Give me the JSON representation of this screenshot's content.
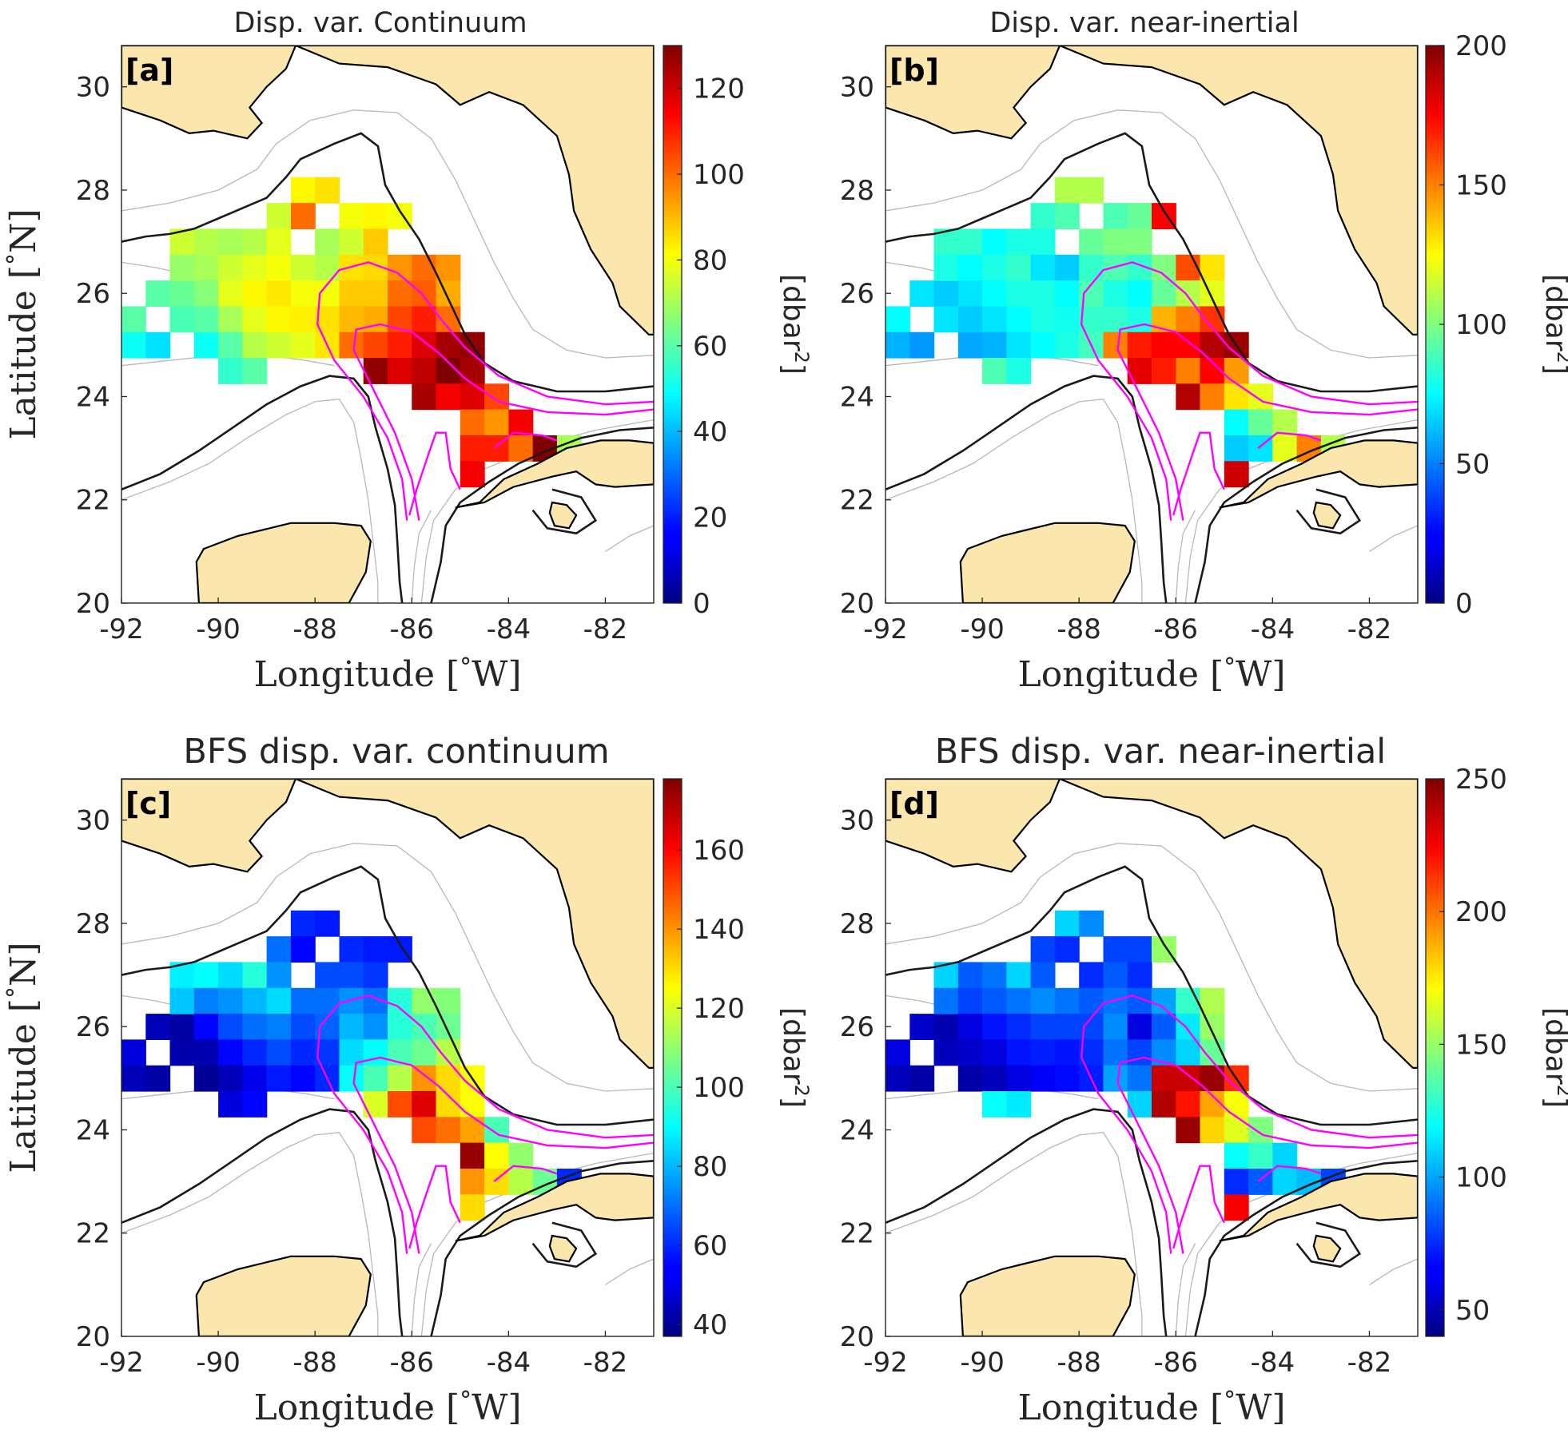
{
  "colors": {
    "land": "#FBE7AE",
    "coast": "#000000",
    "isobath_thick": "#1a1a1a",
    "isobath_thin": "#b8b8b8",
    "loop_current": "#FF00FF",
    "axes": "#262626",
    "sea": "#ffffff"
  },
  "axis": {
    "x_ticks": [
      "-92",
      "-90",
      "-88",
      "-86",
      "-84",
      "-82"
    ],
    "y_ticks": [
      "20",
      "22",
      "24",
      "26",
      "28",
      "30"
    ],
    "x_label_text": "Longitude [",
    "x_label_deg": "°",
    "x_label_unit": "W]",
    "y_label_text": "Latitude [",
    "y_label_deg": "°",
    "y_label_unit": "N]"
  },
  "unit": {
    "base": "[dbar",
    "sup": "2",
    "close": "]"
  },
  "panels": [
    {
      "letter": "[a]",
      "title": "Disp. var. Continuum",
      "cbar_min": 0,
      "cbar_max": 130,
      "cbar_ticks": [
        "0",
        "20",
        "40",
        "60",
        "80",
        "100",
        "120"
      ],
      "cbar_tick_values": [
        0,
        20,
        40,
        60,
        80,
        100,
        120
      ]
    },
    {
      "letter": "[b]",
      "title": "Disp. var. near-inertial",
      "cbar_min": 0,
      "cbar_max": 200,
      "cbar_ticks": [
        "0",
        "50",
        "100",
        "150",
        "200"
      ],
      "cbar_tick_values": [
        0,
        50,
        100,
        150,
        200
      ]
    },
    {
      "letter": "[c]",
      "title": "BFS disp. var. continuum",
      "cbar_min": 37,
      "cbar_max": 178,
      "cbar_ticks": [
        "40",
        "60",
        "80",
        "100",
        "120",
        "140",
        "160"
      ],
      "cbar_tick_values": [
        40,
        60,
        80,
        100,
        120,
        140,
        160
      ]
    },
    {
      "letter": "[d]",
      "title": "BFS disp. var. near-inertial",
      "cbar_min": 40,
      "cbar_max": 250,
      "cbar_ticks": [
        "50",
        "100",
        "150",
        "200",
        "250"
      ],
      "cbar_tick_values": [
        50,
        100,
        150,
        200,
        250
      ]
    }
  ],
  "chart_data": {
    "type": "heatmap",
    "lon_range": [
      -92,
      -81
    ],
    "lat_range": [
      20,
      30.8
    ],
    "cell_size_deg": 0.5,
    "cells": [
      {
        "lon": -91.75,
        "lat": 25.5,
        "v": [
          60,
          75,
          50,
          60
        ]
      },
      {
        "lon": -91.75,
        "lat": 25.0,
        "v": [
          50,
          60,
          45,
          52
        ]
      },
      {
        "lon": -91.25,
        "lat": 25.0,
        "v": [
          45,
          55,
          42,
          48
        ]
      },
      {
        "lon": -91.25,
        "lat": 26.0,
        "v": [
          60,
          70,
          45,
          55
        ]
      },
      {
        "lon": -90.75,
        "lat": 26.0,
        "v": [
          62,
          65,
          42,
          50
        ]
      },
      {
        "lon": -90.75,
        "lat": 25.5,
        "v": [
          58,
          70,
          43,
          52
        ]
      },
      {
        "lon": -90.25,
        "lat": 25.0,
        "v": [
          50,
          58,
          40,
          48
        ]
      },
      {
        "lon": -90.75,
        "lat": 27.0,
        "v": [
          75,
          85,
          88,
          110
        ]
      },
      {
        "lon": -90.75,
        "lat": 26.5,
        "v": [
          68,
          80,
          82,
          90
        ]
      },
      {
        "lon": -90.25,
        "lat": 27.0,
        "v": [
          72,
          85,
          90,
          85
        ]
      },
      {
        "lon": -90.25,
        "lat": 26.5,
        "v": [
          70,
          75,
          72,
          80
        ]
      },
      {
        "lon": -90.25,
        "lat": 26.0,
        "v": [
          66,
          70,
          55,
          60
        ]
      },
      {
        "lon": -90.25,
        "lat": 25.5,
        "v": [
          60,
          65,
          44,
          55
        ]
      },
      {
        "lon": -89.75,
        "lat": 27.0,
        "v": [
          70,
          75,
          85,
          90
        ]
      },
      {
        "lon": -89.75,
        "lat": 26.5,
        "v": [
          75,
          80,
          75,
          85
        ]
      },
      {
        "lon": -89.75,
        "lat": 26.0,
        "v": [
          78,
          75,
          65,
          70
        ]
      },
      {
        "lon": -89.75,
        "lat": 25.5,
        "v": [
          70,
          70,
          55,
          60
        ]
      },
      {
        "lon": -89.75,
        "lat": 25.0,
        "v": [
          60,
          60,
          45,
          52
        ]
      },
      {
        "lon": -89.75,
        "lat": 24.5,
        "v": [
          55,
          90,
          50,
          120
        ]
      },
      {
        "lon": -89.25,
        "lat": 27.0,
        "v": [
          72,
          80,
          95,
          110
        ]
      },
      {
        "lon": -89.25,
        "lat": 26.5,
        "v": [
          78,
          85,
          80,
          90
        ]
      },
      {
        "lon": -89.25,
        "lat": 26.0,
        "v": [
          82,
          80,
          70,
          75
        ]
      },
      {
        "lon": -89.25,
        "lat": 25.5,
        "v": [
          78,
          75,
          60,
          70
        ]
      },
      {
        "lon": -89.25,
        "lat": 25.0,
        "v": [
          72,
          70,
          52,
          60
        ]
      },
      {
        "lon": -89.25,
        "lat": 24.5,
        "v": [
          60,
          80,
          55,
          115
        ]
      },
      {
        "lon": -88.75,
        "lat": 27.5,
        "v": [
          75,
          85,
          70,
          80
        ]
      },
      {
        "lon": -88.75,
        "lat": 27.0,
        "v": [
          78,
          80,
          75,
          85
        ]
      },
      {
        "lon": -88.75,
        "lat": 26.5,
        "v": [
          80,
          70,
          85,
          95
        ]
      },
      {
        "lon": -88.75,
        "lat": 26.0,
        "v": [
          84,
          80,
          72,
          80
        ]
      },
      {
        "lon": -88.75,
        "lat": 25.5,
        "v": [
          82,
          80,
          65,
          72
        ]
      },
      {
        "lon": -88.75,
        "lat": 25.0,
        "v": [
          75,
          75,
          58,
          65
        ]
      },
      {
        "lon": -88.25,
        "lat": 28.0,
        "v": [
          82,
          110,
          60,
          110
        ]
      },
      {
        "lon": -88.25,
        "lat": 27.5,
        "v": [
          100,
          90,
          55,
          75
        ]
      },
      {
        "lon": -88.25,
        "lat": 26.5,
        "v": [
          75,
          65,
          70,
          90
        ]
      },
      {
        "lon": -88.25,
        "lat": 26.0,
        "v": [
          80,
          75,
          65,
          80
        ]
      },
      {
        "lon": -88.25,
        "lat": 25.5,
        "v": [
          83,
          78,
          60,
          70
        ]
      },
      {
        "lon": -88.25,
        "lat": 25.0,
        "v": [
          78,
          80,
          55,
          68
        ]
      },
      {
        "lon": -87.75,
        "lat": 28.0,
        "v": [
          85,
          110,
          58,
          95
        ]
      },
      {
        "lon": -87.75,
        "lat": 27.0,
        "v": [
          70,
          95,
          65,
          75
        ]
      },
      {
        "lon": -87.75,
        "lat": 26.5,
        "v": [
          72,
          85,
          70,
          85
        ]
      },
      {
        "lon": -87.75,
        "lat": 26.0,
        "v": [
          80,
          90,
          68,
          80
        ]
      },
      {
        "lon": -87.75,
        "lat": 25.5,
        "v": [
          85,
          85,
          62,
          75
        ]
      },
      {
        "lon": -87.75,
        "lat": 25.0,
        "v": [
          84,
          88,
          60,
          72
        ]
      },
      {
        "lon": -87.25,
        "lat": 27.5,
        "v": [
          80,
          90,
          60,
          80
        ]
      },
      {
        "lon": -87.25,
        "lat": 27.0,
        "v": [
          75,
          100,
          65,
          85
        ]
      },
      {
        "lon": -87.25,
        "lat": 26.5,
        "v": [
          85,
          90,
          75,
          90
        ]
      },
      {
        "lon": -87.25,
        "lat": 26.0,
        "v": [
          88,
          80,
          80,
          95
        ]
      },
      {
        "lon": -87.25,
        "lat": 25.5,
        "v": [
          90,
          85,
          85,
          90
        ]
      },
      {
        "lon": -87.25,
        "lat": 25.0,
        "v": [
          100,
          150,
          90,
          100
        ]
      },
      {
        "lon": -86.75,
        "lat": 27.5,
        "v": [
          82,
          95,
          58,
          80
        ]
      },
      {
        "lon": -86.75,
        "lat": 27.0,
        "v": [
          88,
          100,
          62,
          75
        ]
      },
      {
        "lon": -86.75,
        "lat": 26.5,
        "v": [
          86,
          85,
          70,
          85
        ]
      },
      {
        "lon": -86.75,
        "lat": 26.0,
        "v": [
          88,
          75,
          75,
          60
        ]
      },
      {
        "lon": -86.75,
        "lat": 25.5,
        "v": [
          92,
          80,
          90,
          80
        ]
      },
      {
        "lon": -86.75,
        "lat": 25.0,
        "v": [
          105,
          170,
          100,
          90
        ]
      },
      {
        "lon": -86.75,
        "lat": 24.5,
        "v": [
          128,
          180,
          120,
          110
        ]
      },
      {
        "lon": -86.25,
        "lat": 27.5,
        "v": [
          80,
          175,
          58,
          150
        ]
      },
      {
        "lon": -86.25,
        "lat": 26.5,
        "v": [
          95,
          100,
          95,
          100
        ]
      },
      {
        "lon": -86.25,
        "lat": 26.0,
        "v": [
          100,
          95,
          95,
          85
        ]
      },
      {
        "lon": -86.25,
        "lat": 25.5,
        "v": [
          105,
          140,
          100,
          95
        ]
      },
      {
        "lon": -86.25,
        "lat": 25.0,
        "v": [
          110,
          175,
          115,
          235
        ]
      },
      {
        "lon": -86.25,
        "lat": 24.5,
        "v": [
          118,
          170,
          150,
          240
        ]
      },
      {
        "lon": -85.75,
        "lat": 26.5,
        "v": [
          100,
          160,
          110,
          130
        ]
      },
      {
        "lon": -85.75,
        "lat": 26.0,
        "v": [
          102,
          110,
          100,
          115
        ]
      },
      {
        "lon": -85.75,
        "lat": 25.5,
        "v": [
          110,
          150,
          105,
          110
        ]
      },
      {
        "lon": -85.75,
        "lat": 25.0,
        "v": [
          118,
          175,
          140,
          235
        ]
      },
      {
        "lon": -85.75,
        "lat": 24.5,
        "v": [
          122,
          150,
          165,
          220
        ]
      },
      {
        "lon": -85.75,
        "lat": 24.0,
        "v": [
          125,
          190,
          150,
          245
        ]
      },
      {
        "lon": -85.25,
        "lat": 26.5,
        "v": [
          95,
          130,
          108,
          155
        ]
      },
      {
        "lon": -85.25,
        "lat": 26.0,
        "v": [
          92,
          120,
          105,
          150
        ]
      },
      {
        "lon": -85.25,
        "lat": 25.5,
        "v": [
          100,
          165,
          115,
          140
        ]
      },
      {
        "lon": -85.25,
        "lat": 25.0,
        "v": [
          125,
          190,
          130,
          245
        ]
      },
      {
        "lon": -85.25,
        "lat": 24.5,
        "v": [
          130,
          175,
          130,
          190
        ]
      },
      {
        "lon": -85.25,
        "lat": 24.0,
        "v": [
          115,
          150,
          145,
          180
        ]
      },
      {
        "lon": -84.75,
        "lat": 25.0,
        "v": [
          128,
          195,
          125,
          215
        ]
      },
      {
        "lon": -84.75,
        "lat": 24.5,
        "v": [
          125,
          145,
          125,
          170
        ]
      },
      {
        "lon": -84.75,
        "lat": 24.0,
        "v": [
          118,
          130,
          138,
          165
        ]
      },
      {
        "lon": -84.75,
        "lat": 23.5,
        "v": [
          100,
          75,
          175,
          120
        ]
      },
      {
        "lon": -84.75,
        "lat": 23.0,
        "v": [
          110,
          65,
          140,
          75
        ]
      },
      {
        "lon": -84.75,
        "lat": 22.5,
        "v": [
          115,
          185,
          130,
          225
        ]
      },
      {
        "lon": -84.25,
        "lat": 24.0,
        "v": [
          105,
          120,
          100,
          145
        ]
      },
      {
        "lon": -84.25,
        "lat": 23.5,
        "v": [
          95,
          95,
          125,
          130
        ]
      },
      {
        "lon": -84.25,
        "lat": 23.0,
        "v": [
          110,
          70,
          130,
          85
        ]
      },
      {
        "lon": -83.75,
        "lat": 23.5,
        "v": [
          115,
          110,
          110,
          110
        ]
      },
      {
        "lon": -83.75,
        "lat": 23.0,
        "v": [
          100,
          120,
          115,
          110
        ]
      },
      {
        "lon": -83.25,
        "lat": 23.0,
        "v": [
          130,
          150,
          105,
          105
        ]
      },
      {
        "lon": -82.75,
        "lat": 23.0,
        "v": [
          70,
          110,
          60,
          80
        ]
      }
    ]
  }
}
